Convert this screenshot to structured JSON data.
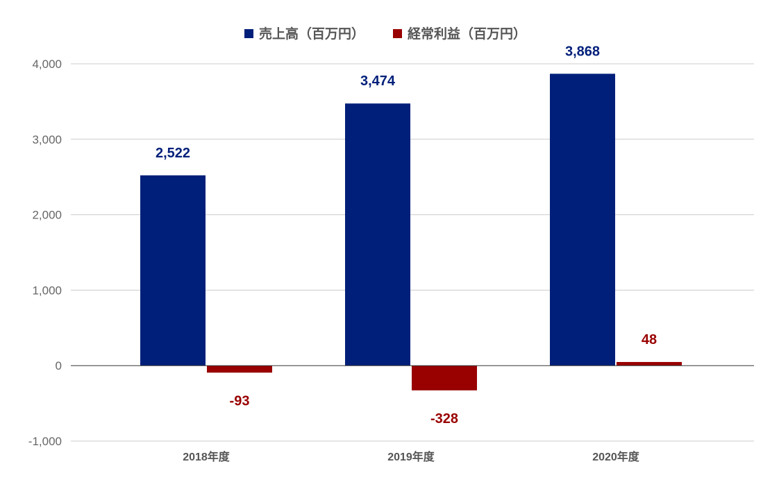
{
  "colors": {
    "series_sales": "#001f7a",
    "series_profit": "#990000",
    "gridline": "#cccccc",
    "zero_line": "#333333"
  },
  "chart_data": {
    "type": "bar",
    "title": "",
    "xlabel": "",
    "ylabel": "",
    "categories": [
      "2018年度",
      "2019年度",
      "2020年度"
    ],
    "series": [
      {
        "name": "売上高（百万円）",
        "values": [
          2522,
          3474,
          3868
        ],
        "labels": [
          "2,522",
          "3,474",
          "3,868"
        ],
        "color": "#001f7a"
      },
      {
        "name": "経常利益（百万円）",
        "values": [
          -93,
          -328,
          48
        ],
        "labels": [
          "-93",
          "-328",
          "48"
        ],
        "color": "#990000"
      }
    ],
    "ylim": [
      -1000,
      4000
    ],
    "yticks": [
      4000,
      3000,
      2000,
      1000,
      0,
      -1000
    ],
    "ytick_labels": [
      "4,000",
      "3,000",
      "2,000",
      "1,000",
      "0",
      "-1,000"
    ],
    "grid": true,
    "legend_position": "top-center"
  }
}
